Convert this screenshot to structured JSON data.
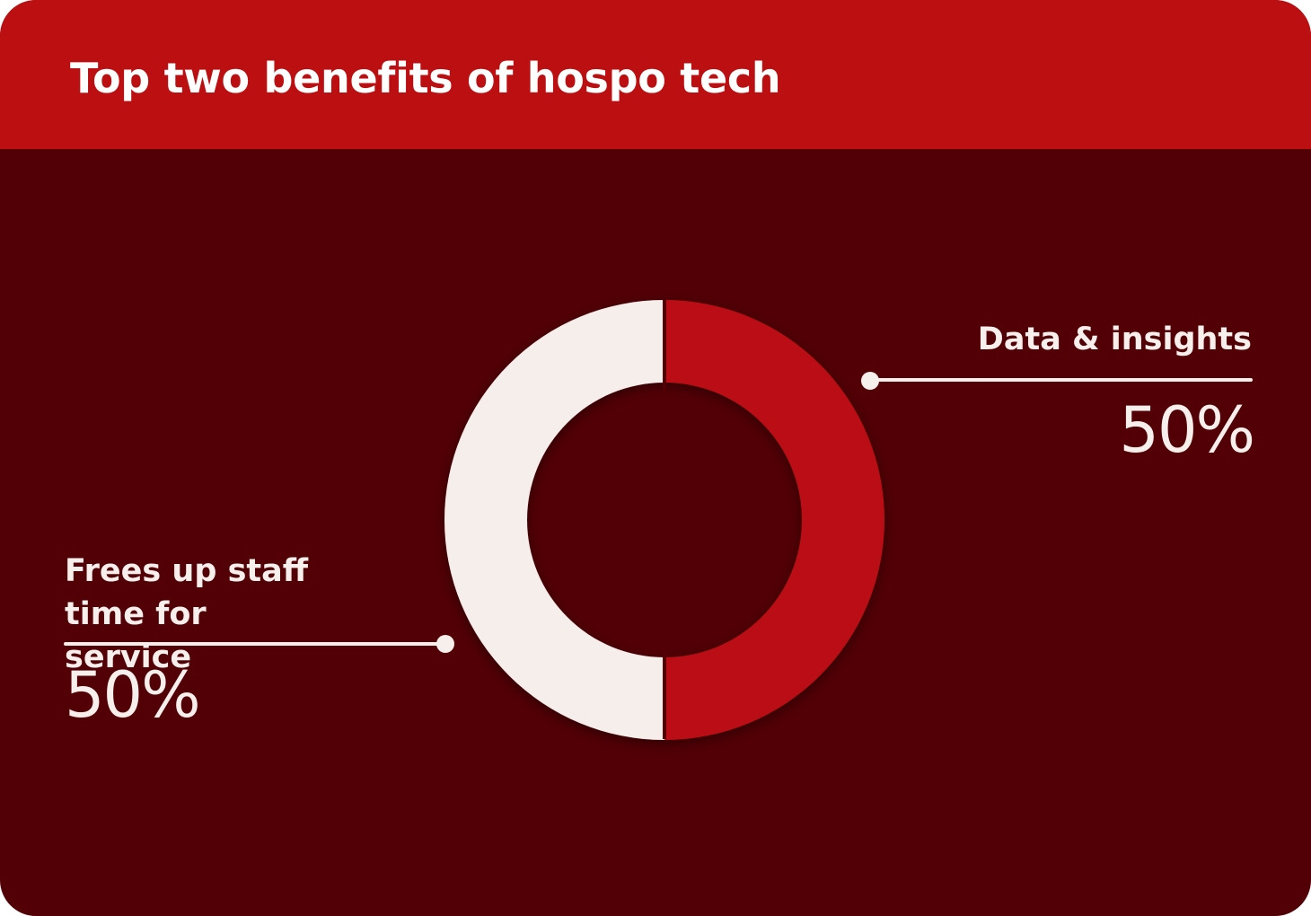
{
  "header": {
    "title": "Top two benefits of hospo tech"
  },
  "colors": {
    "background": "#520005",
    "header": "#bb0f12",
    "accent_red": "#bb0f12",
    "light": "#f6eeeb"
  },
  "chart_data": {
    "type": "pie",
    "title": "Top two benefits of hospo tech",
    "donut": true,
    "slices": [
      {
        "label": "Data & insights",
        "value": 50,
        "value_label": "50%",
        "color": "#bb0f12"
      },
      {
        "label": "Frees up staff time for service",
        "value": 50,
        "value_label": "50%",
        "color": "#f6eeeb"
      }
    ]
  }
}
